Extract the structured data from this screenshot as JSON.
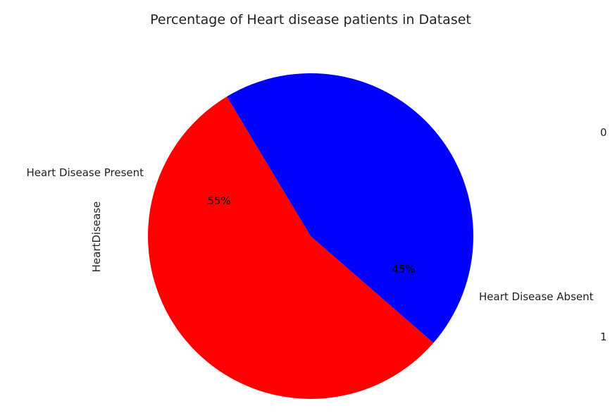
{
  "chart_data": {
    "type": "pie",
    "title": "Percentage of Heart disease patients in Dataset",
    "ylabel": "HeartDisease",
    "slices": [
      {
        "label": "Heart Disease Present",
        "value": 55,
        "pct_label": "55%",
        "color": "#ff0000"
      },
      {
        "label": "Heart Disease Absent",
        "value": 45,
        "pct_label": "45%",
        "color": "#0000ff"
      }
    ],
    "side_labels": [
      "0",
      "1"
    ]
  }
}
